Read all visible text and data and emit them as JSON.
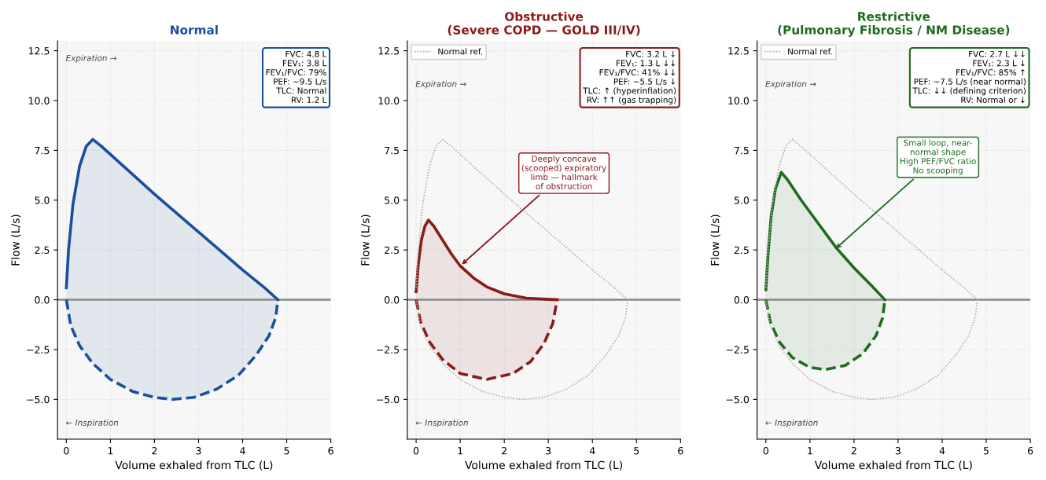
{
  "chart_data": [
    {
      "type": "area",
      "title": "Normal",
      "xlabel": "Volume exhaled from TLC (L)",
      "ylabel": "Flow (L/s)",
      "xlim": [
        -0.2,
        6
      ],
      "ylim": [
        -7,
        13
      ],
      "xticks": [
        0,
        1,
        2,
        3,
        4,
        5,
        6
      ],
      "yticks": [
        {
          "value": -5,
          "label": "−5.0"
        },
        {
          "value": -2.5,
          "label": "−2.5"
        },
        {
          "value": 0,
          "label": "0.0"
        },
        {
          "value": 2.5,
          "label": "2.5"
        },
        {
          "value": 5,
          "label": "5.0"
        },
        {
          "value": 7.5,
          "label": "7.5"
        },
        {
          "value": 10,
          "label": "10.0"
        },
        {
          "value": 12.5,
          "label": "12.5"
        }
      ],
      "grid": true,
      "legend": false,
      "ref_lines": [
        {
          "axis": "y",
          "value": 0,
          "color": "#888888"
        }
      ],
      "series": [
        {
          "color": "#1a4f9c",
          "line_style": "solid",
          "x": [
            0,
            0.05,
            0.15,
            0.3,
            0.45,
            0.6,
            0.8,
            1.2,
            2,
            3,
            4,
            4.5,
            4.8
          ],
          "values": [
            0.6,
            2.5,
            4.8,
            6.7,
            7.7,
            8.05,
            7.7,
            6.9,
            5.3,
            3.4,
            1.5,
            0.6,
            0
          ]
        },
        {
          "color": "#1a4f9c",
          "line_style": "dashed",
          "x": [
            0,
            0.1,
            0.3,
            0.6,
            1,
            1.5,
            2,
            2.4,
            2.9,
            3.4,
            3.9,
            4.3,
            4.6,
            4.75,
            4.8
          ],
          "values": [
            0,
            -1.3,
            -2.3,
            -3.2,
            -4.0,
            -4.6,
            -4.9,
            -5,
            -4.9,
            -4.5,
            -3.8,
            -2.8,
            -1.8,
            -0.9,
            0
          ]
        }
      ],
      "annotations": [
        "Expiration →",
        "← Inspiration",
        "FVC: 4.8 L\nFEV₁: 3.8 L\nFEV₁/FVC: 79%\nPEF: ~9.5 L/s\nTLC: Normal\nRV: 1.2 L"
      ]
    },
    {
      "type": "area",
      "title": "Obstructive\n(Severe COPD — GOLD III/IV)",
      "xlabel": "Volume exhaled from TLC (L)",
      "ylabel": "Flow (L/s)",
      "xlim": [
        -0.2,
        6
      ],
      "ylim": [
        -7,
        13
      ],
      "xticks": [
        0,
        1,
        2,
        3,
        4,
        5,
        6
      ],
      "yticks": [
        {
          "value": -5,
          "label": "−5.0"
        },
        {
          "value": -2.5,
          "label": "−2.5"
        },
        {
          "value": 0,
          "label": "0.0"
        },
        {
          "value": 2.5,
          "label": "2.5"
        },
        {
          "value": 5,
          "label": "5.0"
        },
        {
          "value": 7.5,
          "label": "7.5"
        },
        {
          "value": 10,
          "label": "10.0"
        },
        {
          "value": 12.5,
          "label": "12.5"
        }
      ],
      "grid": true,
      "legend": "top left",
      "ref_lines": [
        {
          "axis": "y",
          "value": 0,
          "color": "#888888"
        }
      ],
      "series": [
        {
          "name": "Normal ref.",
          "type": "line",
          "color": "#b0b0b0",
          "line_style": "dotted",
          "x": [
            0,
            0.05,
            0.15,
            0.3,
            0.45,
            0.6,
            0.8,
            1.2,
            2,
            3,
            4,
            4.5,
            4.8,
            4.75,
            4.6,
            4.3,
            3.9,
            3.4,
            2.9,
            2.4,
            2,
            1.5,
            1,
            0.6,
            0.3,
            0.1,
            0
          ],
          "values": [
            0.6,
            2.5,
            4.8,
            6.7,
            7.7,
            8.05,
            7.7,
            6.9,
            5.3,
            3.4,
            1.5,
            0.6,
            0,
            -0.9,
            -1.8,
            -2.8,
            -3.8,
            -4.5,
            -4.9,
            -5,
            -4.9,
            -4.6,
            -4.0,
            -3.2,
            -2.3,
            -1.3,
            0
          ]
        },
        {
          "color": "#8b1a1a",
          "line_style": "solid",
          "x": [
            0,
            0.05,
            0.12,
            0.2,
            0.28,
            0.4,
            0.6,
            0.8,
            1.0,
            1.3,
            1.6,
            2,
            2.5,
            3.2
          ],
          "values": [
            0.4,
            1.8,
            3.0,
            3.7,
            4.0,
            3.7,
            3.0,
            2.3,
            1.7,
            1.1,
            0.65,
            0.3,
            0.08,
            0
          ]
        },
        {
          "color": "#8b1a1a",
          "line_style": "dashed",
          "x": [
            0,
            0.1,
            0.3,
            0.6,
            1,
            1.6,
            2.2,
            2.6,
            2.9,
            3.1,
            3.2
          ],
          "values": [
            0,
            -1.1,
            -2.1,
            -3.0,
            -3.7,
            -4.0,
            -3.7,
            -3.1,
            -2.2,
            -1.2,
            0
          ]
        }
      ],
      "annotations": [
        "Expiration →",
        "← Inspiration",
        "FVC: 3.2 L ↓\nFEV₁: 1.3 L ↓↓\nFEV₁/FVC: 41% ↓↓\nPEF: ~5.5 L/s ↓\nTLC: ↑ (hyperinflation)\nRV: ↑↑ (gas trapping)",
        {
          "text": "Deeply concave\n(scooped) expiratory\nlimb — hallmark\nof obstruction",
          "x": 1.0,
          "y": 1.7
        }
      ]
    },
    {
      "type": "area",
      "title": "Restrictive\n(Pulmonary Fibrosis / NM Disease)",
      "xlabel": "Volume exhaled from TLC (L)",
      "ylabel": "Flow (L/s)",
      "xlim": [
        -0.2,
        6
      ],
      "ylim": [
        -7,
        13
      ],
      "xticks": [
        0,
        1,
        2,
        3,
        4,
        5,
        6
      ],
      "yticks": [
        {
          "value": -5,
          "label": "−5.0"
        },
        {
          "value": -2.5,
          "label": "−2.5"
        },
        {
          "value": 0,
          "label": "0.0"
        },
        {
          "value": 2.5,
          "label": "2.5"
        },
        {
          "value": 5,
          "label": "5.0"
        },
        {
          "value": 7.5,
          "label": "7.5"
        },
        {
          "value": 10,
          "label": "10.0"
        },
        {
          "value": 12.5,
          "label": "12.5"
        }
      ],
      "grid": true,
      "legend": "top left",
      "ref_lines": [
        {
          "axis": "y",
          "value": 0,
          "color": "#888888"
        }
      ],
      "series": [
        {
          "name": "Normal ref.",
          "type": "line",
          "color": "#b0b0b0",
          "line_style": "dotted",
          "x": [
            0,
            0.05,
            0.15,
            0.3,
            0.45,
            0.6,
            0.8,
            1.2,
            2,
            3,
            4,
            4.5,
            4.8,
            4.75,
            4.6,
            4.3,
            3.9,
            3.4,
            2.9,
            2.4,
            2,
            1.5,
            1,
            0.6,
            0.3,
            0.1,
            0
          ],
          "values": [
            0.6,
            2.5,
            4.8,
            6.7,
            7.7,
            8.05,
            7.7,
            6.9,
            5.3,
            3.4,
            1.5,
            0.6,
            0,
            -0.9,
            -1.8,
            -2.8,
            -3.8,
            -4.5,
            -4.9,
            -5,
            -4.9,
            -4.6,
            -4.0,
            -3.2,
            -2.3,
            -1.3,
            0
          ]
        },
        {
          "color": "#1e6b1e",
          "line_style": "solid",
          "x": [
            0,
            0.05,
            0.12,
            0.22,
            0.35,
            0.5,
            0.8,
            1.2,
            1.6,
            2,
            2.4,
            2.7
          ],
          "values": [
            0.5,
            2.3,
            4.2,
            5.6,
            6.4,
            6.0,
            5.0,
            3.8,
            2.6,
            1.6,
            0.7,
            0
          ]
        },
        {
          "color": "#1e6b1e",
          "line_style": "dashed",
          "x": [
            0,
            0.1,
            0.3,
            0.6,
            1,
            1.35,
            1.8,
            2.2,
            2.5,
            2.65,
            2.7
          ],
          "values": [
            0,
            -1.1,
            -2.1,
            -2.9,
            -3.4,
            -3.5,
            -3.3,
            -2.7,
            -1.8,
            -0.9,
            0
          ]
        }
      ],
      "annotations": [
        "Expiration →",
        "← Inspiration",
        "FVC: 2.7 L ↓↓\nFEV₁: 2.3 L ↓\nFEV₁/FVC: 85% ↑\nPEF: ~7.5 L/s (near normal)\nTLC: ↓↓ (defining criterion)\nRV: Normal or ↓",
        {
          "text": "Small loop, near-\nnormal shape\nHigh PEF/FVC ratio\nNo scooping",
          "x": 1.55,
          "y": 2.5
        }
      ]
    }
  ]
}
